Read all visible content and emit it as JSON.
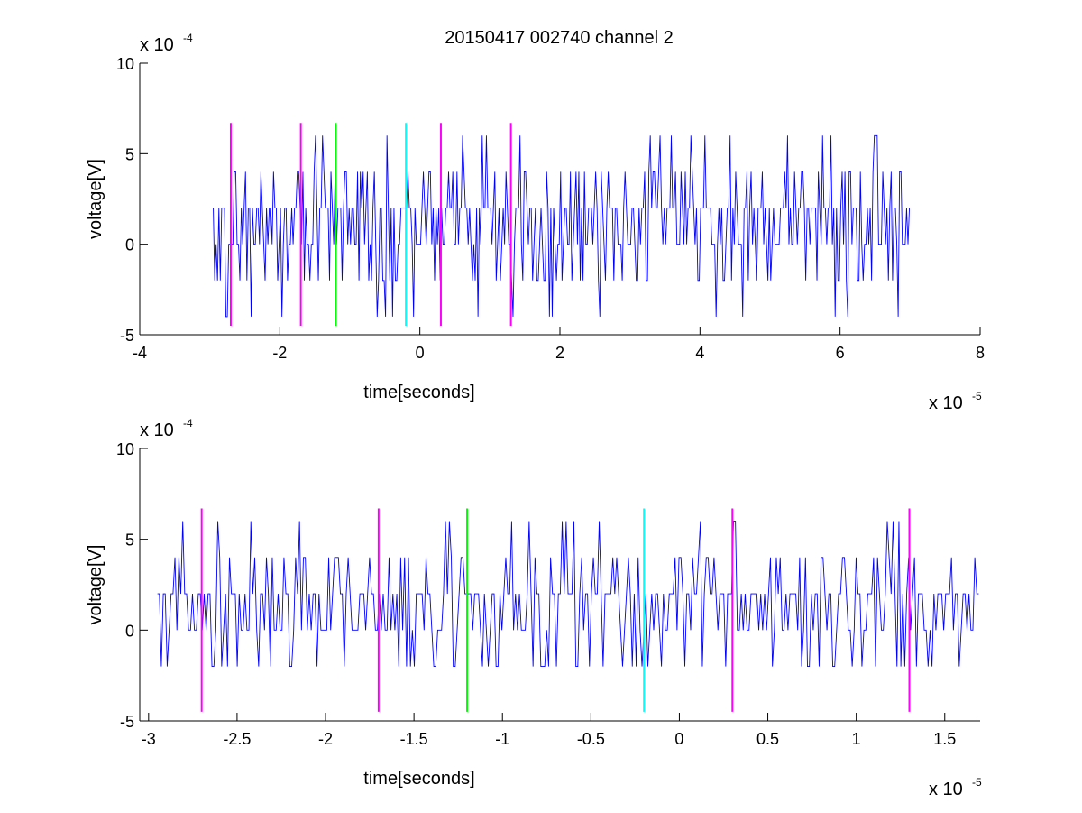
{
  "title": "20150417 002740 channel 2",
  "marker_colors": {
    "magenta": "#ff00ff",
    "green": "#00ff00",
    "cyan": "#00ffff",
    "trace": "#0000ff"
  },
  "chart_data": [
    {
      "type": "line",
      "title": "20150417 002740 channel 2",
      "xlabel": "time[seconds]",
      "ylabel": "voltage[V]",
      "x_multiplier": {
        "base": "x 10",
        "exp": "-5"
      },
      "y_multiplier": {
        "base": "x 10",
        "exp": "-4"
      },
      "xlim": [
        -4,
        8
      ],
      "ylim": [
        -5,
        10
      ],
      "xticks": [
        -4,
        -2,
        0,
        2,
        4,
        6,
        8
      ],
      "xtick_labels": [
        "-4",
        "-2",
        "0",
        "2",
        "4",
        "6",
        "8"
      ],
      "yticks": [
        -5,
        0,
        5,
        10
      ],
      "ytick_labels": [
        "-5",
        "0",
        "5",
        "10"
      ],
      "series": [
        {
          "color": "#0000ff",
          "x_range": [
            -2.95,
            7.0
          ],
          "levels": [
            -4,
            -2,
            0,
            2,
            4,
            6
          ],
          "dominant_levels": [
            0,
            2
          ]
        }
      ],
      "markers": [
        {
          "x": -2.7,
          "color": "#ff00ff",
          "ymin": -4.5,
          "ymax": 6.7
        },
        {
          "x": -1.7,
          "color": "#ff00ff",
          "ymin": -4.5,
          "ymax": 6.7
        },
        {
          "x": -1.2,
          "color": "#00ff00",
          "ymin": -4.5,
          "ymax": 6.7
        },
        {
          "x": -0.2,
          "color": "#00ffff",
          "ymin": -4.5,
          "ymax": 6.7
        },
        {
          "x": 0.3,
          "color": "#ff00ff",
          "ymin": -4.5,
          "ymax": 6.7
        },
        {
          "x": 1.3,
          "color": "#ff00ff",
          "ymin": -4.5,
          "ymax": 6.7
        }
      ],
      "grid": false,
      "legend": "none"
    },
    {
      "type": "line",
      "title": "",
      "xlabel": "time[seconds]",
      "ylabel": "voltage[V]",
      "x_multiplier": {
        "base": "x 10",
        "exp": "-5"
      },
      "y_multiplier": {
        "base": "x 10",
        "exp": "-4"
      },
      "xlim": [
        -3.05,
        1.7
      ],
      "ylim": [
        -5,
        10
      ],
      "xticks": [
        -3,
        -2.5,
        -2,
        -1.5,
        -1,
        -0.5,
        0,
        0.5,
        1,
        1.5
      ],
      "xtick_labels": [
        "-3",
        "-2.5",
        "-2",
        "-1.5",
        "-1",
        "-0.5",
        "0",
        "0.5",
        "1",
        "1.5"
      ],
      "yticks": [
        -5,
        0,
        5,
        10
      ],
      "ytick_labels": [
        "-5",
        "0",
        "5",
        "10"
      ],
      "series": [
        {
          "color": "#0000ff",
          "x_range": [
            -2.95,
            1.7
          ],
          "levels": [
            -2,
            0,
            2,
            4,
            6
          ],
          "dominant_levels": [
            0,
            2
          ]
        }
      ],
      "markers": [
        {
          "x": -2.7,
          "color": "#ff00ff",
          "ymin": -4.5,
          "ymax": 6.7
        },
        {
          "x": -1.7,
          "color": "#ff00ff",
          "ymin": -4.5,
          "ymax": 6.7
        },
        {
          "x": -1.2,
          "color": "#00ff00",
          "ymin": -4.5,
          "ymax": 6.7
        },
        {
          "x": -0.2,
          "color": "#00ffff",
          "ymin": -4.5,
          "ymax": 6.7
        },
        {
          "x": 0.3,
          "color": "#ff00ff",
          "ymin": -4.5,
          "ymax": 6.7
        },
        {
          "x": 1.3,
          "color": "#ff00ff",
          "ymin": -4.5,
          "ymax": 6.7
        }
      ],
      "grid": false,
      "legend": "none"
    }
  ]
}
